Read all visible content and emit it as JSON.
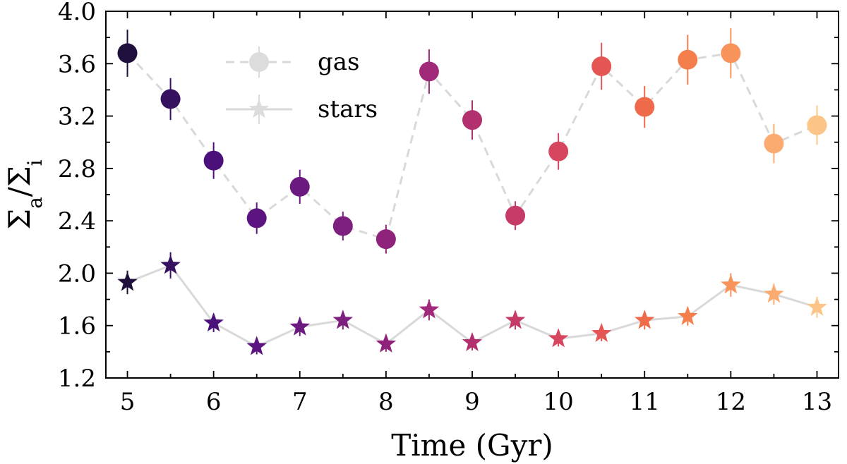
{
  "chart_data": {
    "type": "scatter",
    "title": "",
    "xlabel": "Time (Gyr)",
    "ylabel_parts": [
      "Σ",
      "a",
      "/Σ",
      "i"
    ],
    "xlim": [
      4.75,
      13.25
    ],
    "ylim": [
      1.2,
      4.0
    ],
    "xticks": [
      5,
      6,
      7,
      8,
      9,
      10,
      11,
      12,
      13
    ],
    "xtick_labels": [
      "5",
      "6",
      "7",
      "8",
      "9",
      "10",
      "11",
      "12",
      "13"
    ],
    "yticks": [
      1.2,
      1.6,
      2.0,
      2.4,
      2.8,
      3.2,
      3.6,
      4.0
    ],
    "ytick_labels": [
      "1.2",
      "1.6",
      "2.0",
      "2.4",
      "2.8",
      "3.2",
      "3.6",
      "4.0"
    ],
    "grid": false,
    "legend_position": "top-left",
    "x": [
      5.0,
      5.5,
      6.0,
      6.5,
      7.0,
      7.5,
      8.0,
      8.5,
      9.0,
      9.5,
      10.0,
      10.5,
      11.0,
      11.5,
      12.0,
      12.5,
      13.0
    ],
    "point_colors": [
      "#1f0f3d",
      "#35115f",
      "#4c107a",
      "#5c1580",
      "#6b1a80",
      "#7d1f7f",
      "#8f237c",
      "#a12979",
      "#b3306f",
      "#c63a67",
      "#d6465e",
      "#e55553",
      "#ef6a4a",
      "#f57f4c",
      "#f8945b",
      "#fbab70",
      "#fdc488"
    ],
    "series": [
      {
        "name": "gas",
        "marker": "circle",
        "line_style": "dashed",
        "line_color": "#d9d9d9",
        "values": [
          3.68,
          3.33,
          2.86,
          2.42,
          2.66,
          2.36,
          2.26,
          3.54,
          3.17,
          2.44,
          2.93,
          3.58,
          3.27,
          3.63,
          3.68,
          2.99,
          3.13
        ],
        "errors": [
          0.18,
          0.16,
          0.14,
          0.12,
          0.13,
          0.11,
          0.11,
          0.17,
          0.15,
          0.11,
          0.14,
          0.18,
          0.16,
          0.19,
          0.19,
          0.15,
          0.15
        ]
      },
      {
        "name": "stars",
        "marker": "star",
        "line_style": "solid",
        "line_color": "#d9d9d9",
        "values": [
          1.93,
          2.06,
          1.62,
          1.44,
          1.59,
          1.64,
          1.46,
          1.72,
          1.47,
          1.64,
          1.5,
          1.54,
          1.64,
          1.67,
          1.91,
          1.84,
          1.74
        ],
        "errors": [
          0.09,
          0.1,
          0.07,
          0.06,
          0.07,
          0.07,
          0.06,
          0.08,
          0.06,
          0.07,
          0.06,
          0.06,
          0.07,
          0.07,
          0.09,
          0.08,
          0.08
        ]
      }
    ],
    "legend": {
      "gas_label": "gas",
      "stars_label": "stars",
      "marker_color": "#dcdcdc"
    }
  }
}
